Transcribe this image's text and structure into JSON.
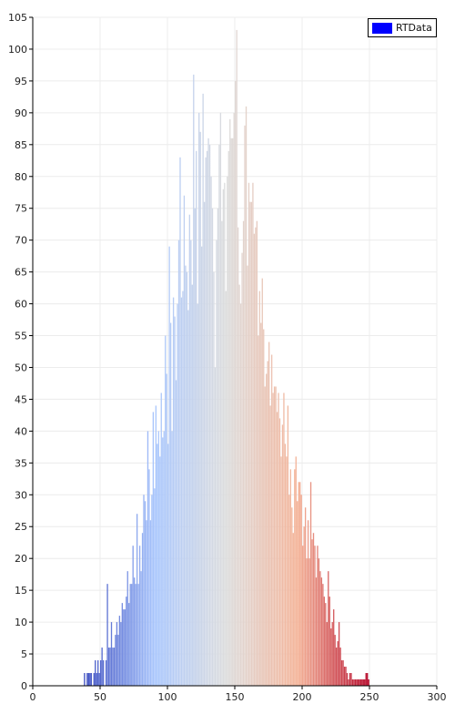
{
  "chart_data": {
    "type": "bar",
    "title": "",
    "xlabel": "",
    "ylabel": "",
    "xlim": [
      0,
      300
    ],
    "ylim": [
      0,
      105
    ],
    "x_ticks": [
      0,
      50,
      100,
      150,
      200,
      250,
      300
    ],
    "y_ticks": [
      0,
      5,
      10,
      15,
      20,
      25,
      30,
      35,
      40,
      45,
      50,
      55,
      60,
      65,
      70,
      75,
      80,
      85,
      90,
      95,
      100,
      105
    ],
    "grid": true,
    "legend_position": "top-right",
    "colormap": "cool-to-warm",
    "colormap_stops": [
      "#3b4cc0",
      "#aac7fd",
      "#dddddd",
      "#f4b398",
      "#b40426"
    ],
    "series": [
      {
        "name": "RTData",
        "color": "#0000ff",
        "x_start": 38,
        "bin_width": 1,
        "values": [
          2,
          0,
          2,
          2,
          2,
          2,
          0,
          2,
          4,
          2,
          4,
          2,
          4,
          6,
          4,
          0,
          4,
          16,
          6,
          6,
          10,
          6,
          6,
          8,
          10,
          8,
          11,
          10,
          13,
          12,
          12,
          14,
          18,
          13,
          16,
          16,
          22,
          17,
          16,
          27,
          16,
          22,
          18,
          24,
          30,
          29,
          26,
          40,
          34,
          26,
          30,
          43,
          31,
          44,
          38,
          40,
          36,
          46,
          39,
          40,
          55,
          49,
          38,
          69,
          57,
          40,
          61,
          58,
          48,
          60,
          70,
          83,
          61,
          62,
          77,
          66,
          65,
          59,
          74,
          70,
          63,
          96,
          75,
          84,
          60,
          90,
          87,
          69,
          93,
          76,
          83,
          84,
          86,
          85,
          80,
          75,
          65,
          50,
          70,
          75,
          85,
          90,
          73,
          78,
          79,
          62,
          80,
          84,
          89,
          86,
          86,
          90,
          95,
          103,
          72,
          63,
          60,
          68,
          73,
          88,
          91,
          66,
          79,
          76,
          76,
          79,
          71,
          72,
          73,
          55,
          62,
          57,
          64,
          56,
          47,
          49,
          51,
          54,
          44,
          52,
          46,
          47,
          47,
          43,
          46,
          42,
          36,
          41,
          46,
          38,
          36,
          44,
          30,
          34,
          28,
          24,
          34,
          36,
          29,
          32,
          32,
          30,
          22,
          25,
          28,
          20,
          26,
          20,
          32,
          23,
          24,
          22,
          17,
          22,
          20,
          18,
          17,
          16,
          14,
          13,
          10,
          18,
          14,
          9,
          10,
          12,
          8,
          6,
          7,
          10,
          6,
          4,
          4,
          3,
          3,
          2,
          1,
          2,
          2,
          1,
          1,
          1,
          1,
          1,
          1,
          1,
          1,
          1,
          1,
          2,
          2,
          1
        ]
      }
    ]
  }
}
